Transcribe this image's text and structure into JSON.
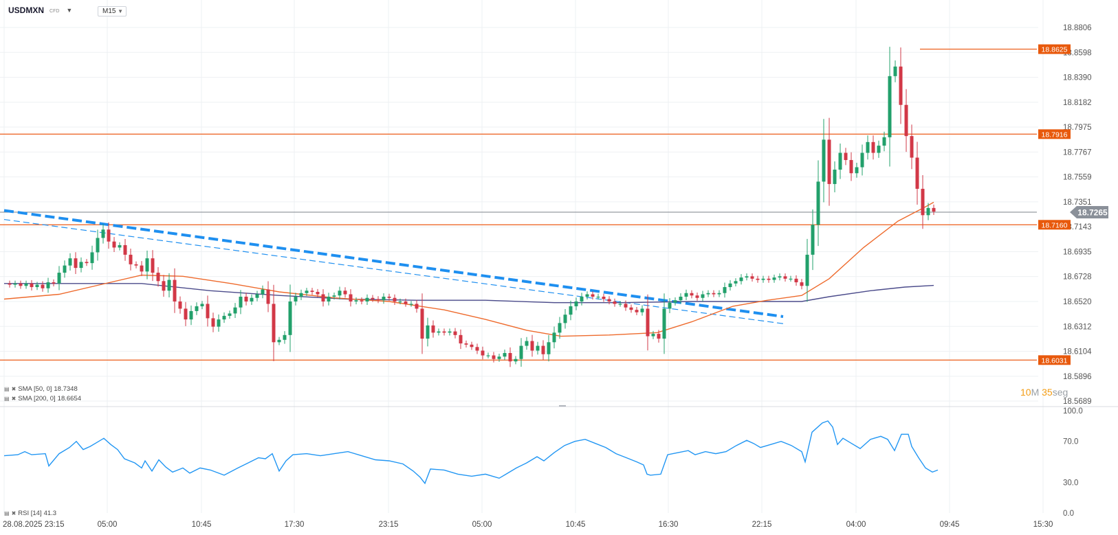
{
  "header": {
    "symbol": "USDMXN",
    "instrument_type": "CFD",
    "timeframe": "M15"
  },
  "indicators": {
    "sma50": {
      "label": "SMA [50, 0]",
      "value": "18.7348",
      "color": "#ee6a2c"
    },
    "sma200": {
      "label": "SMA [200, 0]",
      "value": "18.6654",
      "color": "#4a4a8a"
    },
    "rsi": {
      "label": "RSI [14]",
      "value": "41.3",
      "color": "#2196f3"
    }
  },
  "timer": {
    "minutes": "10",
    "min_unit": "M",
    "seconds": "35",
    "sec_unit": "seg"
  },
  "colors": {
    "bull": "#22a06b",
    "bear": "#d23847",
    "level": "#ee6a2c",
    "trend": "#1e8ff0",
    "current": "#8a8f96"
  },
  "chart_data": [
    {
      "type": "candlestick",
      "symbol": "USDMXN",
      "timeframe": "M15",
      "y_ticks": [
        "18.8806",
        "18.8598",
        "18.8390",
        "18.8182",
        "18.7975",
        "18.7767",
        "18.7559",
        "18.7351",
        "18.7143",
        "18.6935",
        "18.6728",
        "18.6520",
        "18.6312",
        "18.6104",
        "18.5896",
        "18.5689"
      ],
      "ylim": [
        18.5689,
        18.8806
      ],
      "x_ticks": [
        "28.08.2025  23:15",
        "05:00",
        "10:45",
        "17:30",
        "23:15",
        "05:00",
        "10:45",
        "16:30",
        "22:15",
        "04:00",
        "09:45",
        "15:30"
      ],
      "price_levels": [
        {
          "label": "18.8625",
          "value": 18.8625
        },
        {
          "label": "18.7916",
          "value": 18.7916
        },
        {
          "label": "18.7160",
          "value": 18.716
        },
        {
          "label": "18.6031",
          "value": 18.6031
        }
      ],
      "current_price": {
        "label": "18.7265",
        "value": 18.7265
      },
      "close_path": [
        [
          0,
          18.667
        ],
        [
          8,
          18.666
        ],
        [
          16,
          18.667
        ],
        [
          24,
          18.665
        ],
        [
          32,
          18.667
        ],
        [
          40,
          18.664
        ],
        [
          48,
          18.666
        ],
        [
          56,
          18.663
        ],
        [
          64,
          18.668
        ],
        [
          72,
          18.667
        ],
        [
          80,
          18.676
        ],
        [
          88,
          18.682
        ],
        [
          96,
          18.688
        ],
        [
          104,
          18.68
        ],
        [
          112,
          18.685
        ],
        [
          120,
          18.684
        ],
        [
          128,
          18.693
        ],
        [
          136,
          18.705
        ],
        [
          144,
          18.712
        ],
        [
          152,
          18.702
        ],
        [
          160,
          18.697
        ],
        [
          168,
          18.699
        ],
        [
          176,
          18.691
        ],
        [
          184,
          18.683
        ],
        [
          192,
          18.682
        ],
        [
          200,
          18.677
        ],
        [
          208,
          18.688
        ],
        [
          216,
          18.676
        ],
        [
          224,
          18.669
        ],
        [
          232,
          18.661
        ],
        [
          240,
          18.67
        ],
        [
          248,
          18.652
        ],
        [
          256,
          18.646
        ],
        [
          264,
          18.637
        ],
        [
          272,
          18.644
        ],
        [
          280,
          18.648
        ],
        [
          288,
          18.65
        ],
        [
          296,
          18.638
        ],
        [
          304,
          18.631
        ],
        [
          312,
          18.637
        ],
        [
          320,
          18.64
        ],
        [
          328,
          18.642
        ],
        [
          336,
          18.647
        ],
        [
          344,
          18.656
        ],
        [
          352,
          18.652
        ],
        [
          360,
          18.655
        ],
        [
          368,
          18.658
        ],
        [
          376,
          18.662
        ],
        [
          384,
          18.65
        ],
        [
          392,
          18.618
        ],
        [
          400,
          18.62
        ],
        [
          408,
          18.624
        ],
        [
          416,
          18.652
        ],
        [
          424,
          18.656
        ],
        [
          432,
          18.659
        ],
        [
          440,
          18.661
        ],
        [
          448,
          18.66
        ],
        [
          456,
          18.658
        ],
        [
          464,
          18.652
        ],
        [
          472,
          18.656
        ],
        [
          480,
          18.657
        ],
        [
          488,
          18.661
        ],
        [
          496,
          18.658
        ],
        [
          504,
          18.652
        ],
        [
          512,
          18.653
        ],
        [
          520,
          18.652
        ],
        [
          528,
          18.655
        ],
        [
          536,
          18.654
        ],
        [
          544,
          18.653
        ],
        [
          552,
          18.656
        ],
        [
          560,
          18.655
        ],
        [
          568,
          18.652
        ],
        [
          576,
          18.652
        ],
        [
          584,
          18.65
        ],
        [
          592,
          18.65
        ],
        [
          600,
          18.646
        ],
        [
          608,
          18.621
        ],
        [
          616,
          18.632
        ],
        [
          624,
          18.626
        ],
        [
          632,
          18.627
        ],
        [
          640,
          18.626
        ],
        [
          648,
          18.627
        ],
        [
          656,
          18.624
        ],
        [
          664,
          18.617
        ],
        [
          672,
          18.616
        ],
        [
          680,
          18.614
        ],
        [
          688,
          18.611
        ],
        [
          696,
          18.607
        ],
        [
          704,
          18.607
        ],
        [
          712,
          18.604
        ],
        [
          720,
          18.606
        ],
        [
          728,
          18.609
        ],
        [
          736,
          18.602
        ],
        [
          744,
          18.604
        ],
        [
          752,
          18.615
        ],
        [
          760,
          18.619
        ],
        [
          768,
          18.611
        ],
        [
          776,
          18.615
        ],
        [
          784,
          18.608
        ],
        [
          792,
          18.618
        ],
        [
          800,
          18.626
        ],
        [
          808,
          18.634
        ],
        [
          816,
          18.641
        ],
        [
          824,
          18.648
        ],
        [
          832,
          18.652
        ],
        [
          840,
          18.656
        ],
        [
          848,
          18.658
        ],
        [
          856,
          18.656
        ],
        [
          864,
          18.656
        ],
        [
          872,
          18.654
        ],
        [
          880,
          18.652
        ],
        [
          888,
          18.65
        ],
        [
          896,
          18.65
        ],
        [
          904,
          18.647
        ],
        [
          912,
          18.645
        ],
        [
          920,
          18.643
        ],
        [
          928,
          18.646
        ],
        [
          936,
          18.623
        ],
        [
          944,
          18.625
        ],
        [
          952,
          18.621
        ],
        [
          960,
          18.646
        ],
        [
          968,
          18.651
        ],
        [
          976,
          18.653
        ],
        [
          984,
          18.656
        ],
        [
          992,
          18.659
        ],
        [
          1000,
          18.657
        ],
        [
          1008,
          18.655
        ],
        [
          1016,
          18.658
        ],
        [
          1024,
          18.659
        ],
        [
          1032,
          18.658
        ],
        [
          1040,
          18.659
        ],
        [
          1048,
          18.664
        ],
        [
          1056,
          18.667
        ],
        [
          1064,
          18.669
        ],
        [
          1072,
          18.672
        ],
        [
          1080,
          18.673
        ],
        [
          1088,
          18.671
        ],
        [
          1096,
          18.67
        ],
        [
          1104,
          18.671
        ],
        [
          1112,
          18.67
        ],
        [
          1120,
          18.672
        ],
        [
          1128,
          18.673
        ],
        [
          1136,
          18.671
        ],
        [
          1144,
          18.671
        ],
        [
          1152,
          18.668
        ],
        [
          1160,
          18.665
        ],
        [
          1168,
          18.691
        ],
        [
          1176,
          18.716
        ],
        [
          1184,
          18.752
        ],
        [
          1192,
          18.787
        ],
        [
          1200,
          18.75
        ],
        [
          1208,
          18.762
        ],
        [
          1216,
          18.776
        ],
        [
          1224,
          18.77
        ],
        [
          1232,
          18.759
        ],
        [
          1240,
          18.764
        ],
        [
          1248,
          18.776
        ],
        [
          1256,
          18.785
        ],
        [
          1264,
          18.776
        ],
        [
          1272,
          18.782
        ],
        [
          1280,
          18.789
        ],
        [
          1288,
          18.84
        ],
        [
          1296,
          18.848
        ],
        [
          1304,
          18.816
        ],
        [
          1312,
          18.79
        ],
        [
          1320,
          18.772
        ],
        [
          1328,
          18.746
        ],
        [
          1336,
          18.724
        ],
        [
          1344,
          18.73
        ],
        [
          1352,
          18.727
        ]
      ],
      "sma50_path": [
        [
          0,
          18.654
        ],
        [
          80,
          18.658
        ],
        [
          140,
          18.666
        ],
        [
          200,
          18.674
        ],
        [
          260,
          18.673
        ],
        [
          330,
          18.667
        ],
        [
          400,
          18.66
        ],
        [
          480,
          18.655
        ],
        [
          560,
          18.652
        ],
        [
          640,
          18.645
        ],
        [
          700,
          18.637
        ],
        [
          760,
          18.628
        ],
        [
          810,
          18.623
        ],
        [
          880,
          18.624
        ],
        [
          950,
          18.626
        ],
        [
          1000,
          18.635
        ],
        [
          1060,
          18.648
        ],
        [
          1110,
          18.653
        ],
        [
          1160,
          18.657
        ],
        [
          1200,
          18.671
        ],
        [
          1250,
          18.697
        ],
        [
          1300,
          18.719
        ],
        [
          1340,
          18.731
        ],
        [
          1352,
          18.7348
        ]
      ],
      "sma200_path": [
        [
          0,
          18.667
        ],
        [
          200,
          18.667
        ],
        [
          300,
          18.661
        ],
        [
          400,
          18.657
        ],
        [
          500,
          18.654
        ],
        [
          600,
          18.653
        ],
        [
          700,
          18.653
        ],
        [
          800,
          18.651
        ],
        [
          900,
          18.651
        ],
        [
          1000,
          18.652
        ],
        [
          1100,
          18.652
        ],
        [
          1160,
          18.652
        ],
        [
          1200,
          18.656
        ],
        [
          1260,
          18.661
        ],
        [
          1310,
          18.664
        ],
        [
          1352,
          18.6654
        ]
      ],
      "trendline_bold": [
        [
          0,
          18.7279
        ],
        [
          1133,
          18.6394
        ]
      ],
      "trendline_thin": [
        [
          0,
          18.7204
        ],
        [
          1133,
          18.6335
        ]
      ],
      "rsi_path": [
        [
          0,
          56
        ],
        [
          20,
          57
        ],
        [
          30,
          60
        ],
        [
          40,
          57
        ],
        [
          60,
          58
        ],
        [
          65,
          46
        ],
        [
          80,
          58
        ],
        [
          95,
          64
        ],
        [
          105,
          70
        ],
        [
          115,
          62
        ],
        [
          125,
          65
        ],
        [
          135,
          69
        ],
        [
          145,
          73
        ],
        [
          155,
          67
        ],
        [
          165,
          62
        ],
        [
          175,
          53
        ],
        [
          190,
          49
        ],
        [
          200,
          44
        ],
        [
          205,
          51
        ],
        [
          215,
          41
        ],
        [
          225,
          52
        ],
        [
          235,
          45
        ],
        [
          245,
          40
        ],
        [
          260,
          44
        ],
        [
          270,
          39
        ],
        [
          285,
          44
        ],
        [
          300,
          42
        ],
        [
          320,
          37
        ],
        [
          340,
          44
        ],
        [
          355,
          49
        ],
        [
          370,
          54
        ],
        [
          380,
          53
        ],
        [
          390,
          58
        ],
        [
          400,
          41
        ],
        [
          410,
          51
        ],
        [
          420,
          57
        ],
        [
          440,
          58
        ],
        [
          460,
          56
        ],
        [
          480,
          58
        ],
        [
          500,
          60
        ],
        [
          520,
          56
        ],
        [
          540,
          52
        ],
        [
          560,
          51
        ],
        [
          580,
          48
        ],
        [
          595,
          41
        ],
        [
          605,
          35
        ],
        [
          612,
          29
        ],
        [
          620,
          43
        ],
        [
          640,
          42
        ],
        [
          660,
          38
        ],
        [
          680,
          36
        ],
        [
          700,
          38
        ],
        [
          720,
          34
        ],
        [
          730,
          38
        ],
        [
          745,
          44
        ],
        [
          760,
          49
        ],
        [
          775,
          55
        ],
        [
          785,
          51
        ],
        [
          800,
          59
        ],
        [
          815,
          66
        ],
        [
          830,
          70
        ],
        [
          845,
          72
        ],
        [
          860,
          68
        ],
        [
          875,
          64
        ],
        [
          890,
          58
        ],
        [
          905,
          54
        ],
        [
          920,
          50
        ],
        [
          930,
          47
        ],
        [
          935,
          38
        ],
        [
          940,
          37
        ],
        [
          955,
          38
        ],
        [
          965,
          57
        ],
        [
          980,
          59
        ],
        [
          995,
          61
        ],
        [
          1005,
          57
        ],
        [
          1020,
          60
        ],
        [
          1035,
          58
        ],
        [
          1050,
          60
        ],
        [
          1065,
          66
        ],
        [
          1080,
          71
        ],
        [
          1090,
          68
        ],
        [
          1100,
          64
        ],
        [
          1115,
          67
        ],
        [
          1130,
          70
        ],
        [
          1145,
          66
        ],
        [
          1160,
          60
        ],
        [
          1165,
          50
        ],
        [
          1175,
          79
        ],
        [
          1190,
          88
        ],
        [
          1198,
          90
        ],
        [
          1205,
          84
        ],
        [
          1212,
          67
        ],
        [
          1220,
          73
        ],
        [
          1230,
          69
        ],
        [
          1245,
          63
        ],
        [
          1260,
          72
        ],
        [
          1275,
          75
        ],
        [
          1285,
          72
        ],
        [
          1295,
          61
        ],
        [
          1305,
          77
        ],
        [
          1315,
          77
        ],
        [
          1320,
          65
        ],
        [
          1330,
          54
        ],
        [
          1340,
          44
        ],
        [
          1350,
          40
        ],
        [
          1358,
          42
        ]
      ],
      "rsi_ticks": [
        "100.0",
        "70.0",
        "30.0",
        "0.0"
      ],
      "rsi_ylim": [
        0,
        100
      ]
    }
  ]
}
